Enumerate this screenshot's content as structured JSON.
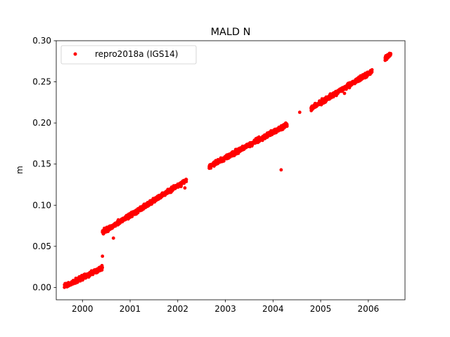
{
  "chart_data": {
    "type": "scatter",
    "title": "MALD N",
    "xlabel": "",
    "ylabel": "m",
    "xlim": [
      1999.45,
      2006.77
    ],
    "ylim": [
      -0.015,
      0.3
    ],
    "grid": false,
    "legend_position": "top-left",
    "x_ticks": [
      2000,
      2001,
      2002,
      2003,
      2004,
      2005,
      2006
    ],
    "x_tick_labels": [
      "2000",
      "2001",
      "2002",
      "2003",
      "2004",
      "2005",
      "2006"
    ],
    "y_ticks": [
      0.0,
      0.05,
      0.1,
      0.15,
      0.2,
      0.25,
      0.3
    ],
    "y_tick_labels": [
      "0.00",
      "0.05",
      "0.10",
      "0.15",
      "0.20",
      "0.25",
      "0.30"
    ],
    "series": [
      {
        "name": "repro2018a (IGS14)",
        "color": "#ff0000",
        "marker": "circle",
        "segments": [
          {
            "x_start": 1999.62,
            "x_end": 2000.42,
            "y_start": 0.001,
            "y_end": 0.024
          },
          {
            "x_start": 2000.42,
            "x_end": 2002.18,
            "y_start": 0.067,
            "y_end": 0.13
          },
          {
            "x_start": 2002.65,
            "x_end": 2004.3,
            "y_start": 0.147,
            "y_end": 0.198
          },
          {
            "x_start": 2004.8,
            "x_end": 2006.08,
            "y_start": 0.218,
            "y_end": 0.263
          },
          {
            "x_start": 2006.35,
            "x_end": 2006.47,
            "y_start": 0.278,
            "y_end": 0.284
          }
        ],
        "outliers": [
          {
            "x": 2000.42,
            "y": 0.038
          },
          {
            "x": 2000.65,
            "y": 0.06
          },
          {
            "x": 2002.15,
            "y": 0.121
          },
          {
            "x": 2004.17,
            "y": 0.143
          },
          {
            "x": 2004.56,
            "y": 0.213
          },
          {
            "x": 2005.5,
            "y": 0.236
          }
        ]
      }
    ]
  }
}
